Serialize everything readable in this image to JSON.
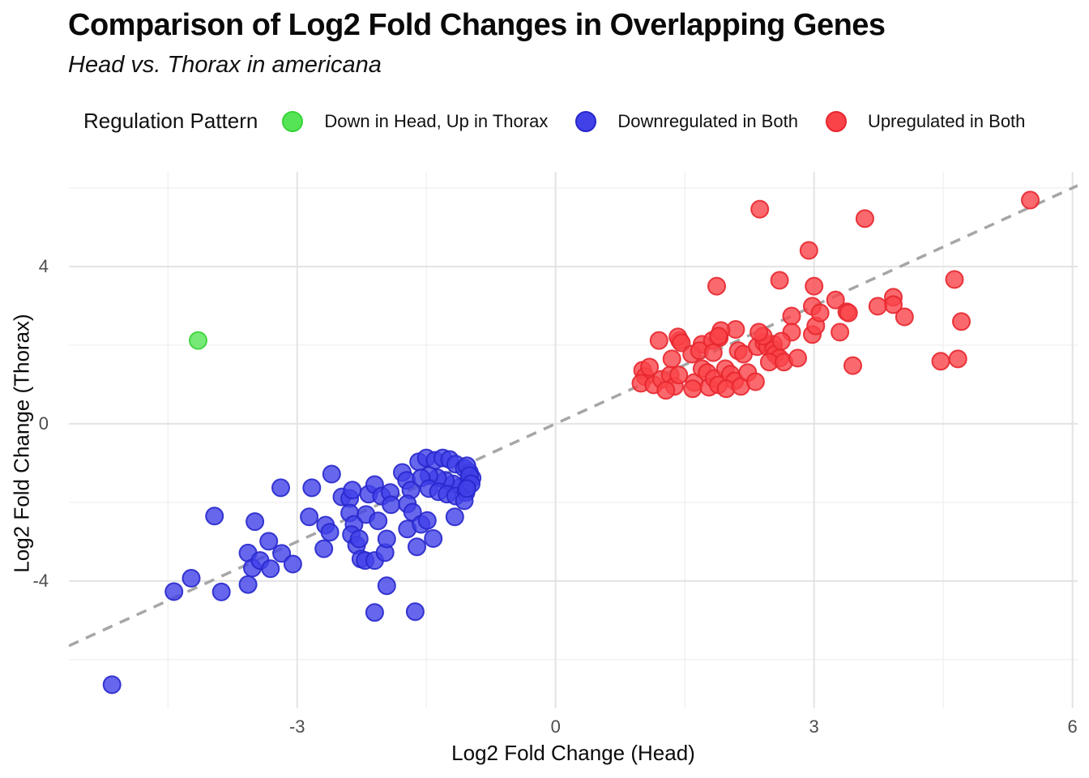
{
  "header": {
    "title": "Comparison of Log2 Fold Changes in Overlapping Genes",
    "subtitle": "Head vs. Thorax in americana"
  },
  "legend": {
    "title": "Regulation Pattern",
    "items": [
      {
        "label": "Down in Head, Up in Thorax",
        "color": "#55e455",
        "stroke": "#38d438"
      },
      {
        "label": "Downregulated in Both",
        "color": "#4141e8",
        "stroke": "#2727cc"
      },
      {
        "label": "Upregulated in Both",
        "color": "#f94348",
        "stroke": "#e7262e"
      }
    ]
  },
  "chart_data": {
    "type": "scatter",
    "title": "Comparison of Log2 Fold Changes in Overlapping Genes",
    "subtitle": "Head vs. Thorax in americana",
    "xlabel": "Log2 Fold Change (Head)",
    "ylabel": "Log2 Fold Change (Thorax)",
    "xlim": [
      -5.65,
      6.06
    ],
    "ylim": [
      -7.24,
      6.41
    ],
    "x_major_ticks": [
      -3,
      0,
      3,
      6
    ],
    "x_minor_ticks": [
      -4.5,
      -1.5,
      1.5,
      4.5
    ],
    "y_major_ticks": [
      4,
      0,
      -4
    ],
    "y_minor_ticks": [
      6,
      2,
      -2,
      -6
    ],
    "grid": "on",
    "legend_position": "top",
    "grid_major_color": "#e3e3e3",
    "grid_minor_color": "#efefef",
    "reference_line": {
      "type": "identity y = x",
      "style": "dashed",
      "color": "#a6a6a6"
    },
    "point_radius": 10.5,
    "series": [
      {
        "name": "Down in Head, Up in Thorax",
        "color": "#55e455",
        "stroke": "#38d438",
        "points": [
          [
            -4.15,
            2.12
          ]
        ]
      },
      {
        "name": "Downregulated in Both",
        "color": "#4141e8",
        "stroke": "#2727cc",
        "points": [
          [
            -5.15,
            -6.64
          ],
          [
            -4.43,
            -4.27
          ],
          [
            -4.23,
            -3.93
          ],
          [
            -3.96,
            -2.35
          ],
          [
            -3.88,
            -4.28
          ],
          [
            -3.57,
            -3.29
          ],
          [
            -3.57,
            -4.09
          ],
          [
            -3.52,
            -3.67
          ],
          [
            -3.49,
            -2.49
          ],
          [
            -3.43,
            -3.48
          ],
          [
            -3.33,
            -2.99
          ],
          [
            -3.31,
            -3.69
          ],
          [
            -3.19,
            -1.63
          ],
          [
            -3.18,
            -3.3
          ],
          [
            -3.05,
            -3.57
          ],
          [
            -2.86,
            -2.37
          ],
          [
            -2.83,
            -1.63
          ],
          [
            -2.69,
            -3.18
          ],
          [
            -2.67,
            -2.58
          ],
          [
            -2.62,
            -2.76
          ],
          [
            -2.6,
            -1.28
          ],
          [
            -2.48,
            -1.86
          ],
          [
            -2.39,
            -1.9
          ],
          [
            -2.36,
            -1.69
          ],
          [
            -2.39,
            -2.27
          ],
          [
            -2.34,
            -2.56
          ],
          [
            -2.37,
            -2.82
          ],
          [
            -2.31,
            -3.09
          ],
          [
            -2.28,
            -2.93
          ],
          [
            -2.26,
            -3.44
          ],
          [
            -2.21,
            -3.48
          ],
          [
            -2.17,
            -1.79
          ],
          [
            -2.2,
            -2.31
          ],
          [
            -2.1,
            -1.55
          ],
          [
            -2.1,
            -3.48
          ],
          [
            -2.1,
            -4.8
          ],
          [
            -2.06,
            -2.47
          ],
          [
            -2.02,
            -1.84
          ],
          [
            -1.98,
            -3.28
          ],
          [
            -1.96,
            -2.93
          ],
          [
            -1.96,
            -4.12
          ],
          [
            -1.92,
            -1.75
          ],
          [
            -1.91,
            -2.06
          ],
          [
            -1.78,
            -1.24
          ],
          [
            -1.73,
            -1.44
          ],
          [
            -1.68,
            -1.69
          ],
          [
            -1.72,
            -2.04
          ],
          [
            -1.66,
            -2.25
          ],
          [
            -1.72,
            -2.68
          ],
          [
            -1.63,
            -4.78
          ],
          [
            -1.61,
            -3.13
          ],
          [
            -1.56,
            -2.56
          ],
          [
            -1.49,
            -2.46
          ],
          [
            -1.42,
            -2.92
          ],
          [
            -1.17,
            -2.37
          ],
          [
            -1.59,
            -0.97
          ],
          [
            -1.5,
            -0.87
          ],
          [
            -1.4,
            -0.93
          ],
          [
            -1.31,
            -0.87
          ],
          [
            -1.23,
            -0.91
          ],
          [
            -1.16,
            -1.03
          ],
          [
            -1.06,
            -1.13
          ],
          [
            -1.0,
            -1.24
          ],
          [
            -0.97,
            -1.38
          ],
          [
            -1.02,
            -1.53
          ],
          [
            -1.09,
            -1.59
          ],
          [
            -1.19,
            -1.53
          ],
          [
            -1.28,
            -1.44
          ],
          [
            -1.37,
            -1.38
          ],
          [
            -1.47,
            -1.32
          ],
          [
            -1.56,
            -1.38
          ],
          [
            -1.47,
            -1.65
          ],
          [
            -1.36,
            -1.73
          ],
          [
            -1.26,
            -1.79
          ],
          [
            -1.16,
            -1.84
          ],
          [
            -1.04,
            -1.75
          ],
          [
            -1.03,
            -1.07
          ],
          [
            -1.0,
            -1.32
          ],
          [
            -0.98,
            -1.53
          ],
          [
            -1.06,
            -1.96
          ],
          [
            -1.03,
            -1.65
          ]
        ]
      },
      {
        "name": "Upregulated in Both",
        "color": "#f94348",
        "stroke": "#e7262e",
        "points": [
          [
            2.37,
            5.46
          ],
          [
            3.59,
            5.22
          ],
          [
            5.51,
            5.69
          ],
          [
            2.94,
            4.41
          ],
          [
            2.6,
            3.65
          ],
          [
            1.87,
            3.5
          ],
          [
            3.0,
            3.5
          ],
          [
            3.25,
            3.15
          ],
          [
            2.98,
            2.99
          ],
          [
            3.38,
            2.85
          ],
          [
            3.92,
            3.22
          ],
          [
            3.92,
            3.03
          ],
          [
            3.74,
            2.99
          ],
          [
            4.05,
            2.72
          ],
          [
            3.4,
            2.82
          ],
          [
            4.63,
            3.67
          ],
          [
            4.71,
            2.6
          ],
          [
            4.47,
            1.59
          ],
          [
            4.67,
            1.65
          ],
          [
            3.45,
            1.48
          ],
          [
            2.74,
            2.74
          ],
          [
            2.74,
            2.33
          ],
          [
            3.3,
            2.33
          ],
          [
            2.98,
            2.27
          ],
          [
            3.02,
            2.49
          ],
          [
            3.07,
            2.82
          ],
          [
            2.09,
            2.4
          ],
          [
            1.2,
            2.12
          ],
          [
            1.44,
            2.12
          ],
          [
            1.42,
            2.21
          ],
          [
            1.46,
            2.06
          ],
          [
            1.7,
            2.02
          ],
          [
            1.82,
            2.12
          ],
          [
            1.9,
            2.19
          ],
          [
            1.92,
            2.37
          ],
          [
            1.89,
            2.23
          ],
          [
            1.01,
            1.36
          ],
          [
            1.04,
            1.2
          ],
          [
            0.99,
            1.03
          ],
          [
            1.09,
            1.44
          ],
          [
            1.14,
            0.99
          ],
          [
            1.23,
            1.13
          ],
          [
            1.33,
            1.24
          ],
          [
            1.38,
            0.95
          ],
          [
            1.28,
            0.85
          ],
          [
            1.43,
            1.24
          ],
          [
            1.35,
            1.65
          ],
          [
            1.58,
            1.77
          ],
          [
            1.61,
            1.05
          ],
          [
            1.59,
            0.89
          ],
          [
            1.67,
            1.86
          ],
          [
            1.7,
            1.4
          ],
          [
            1.76,
            1.3
          ],
          [
            1.78,
            0.93
          ],
          [
            1.84,
            1.15
          ],
          [
            1.89,
            0.99
          ],
          [
            1.83,
            1.81
          ],
          [
            1.97,
            1.4
          ],
          [
            2.03,
            1.26
          ],
          [
            2.08,
            1.09
          ],
          [
            1.98,
            0.89
          ],
          [
            2.12,
            1.86
          ],
          [
            2.15,
            0.95
          ],
          [
            2.18,
            1.77
          ],
          [
            2.23,
            1.3
          ],
          [
            2.32,
            1.07
          ],
          [
            2.34,
            1.96
          ],
          [
            2.42,
            2.06
          ],
          [
            2.46,
            1.96
          ],
          [
            2.53,
            2.02
          ],
          [
            2.53,
            1.88
          ],
          [
            2.55,
            1.77
          ],
          [
            2.62,
            2.1
          ],
          [
            2.6,
            1.67
          ],
          [
            2.48,
            1.57
          ],
          [
            2.65,
            1.57
          ],
          [
            2.81,
            1.67
          ],
          [
            2.41,
            2.23
          ],
          [
            2.36,
            2.33
          ]
        ]
      }
    ]
  }
}
